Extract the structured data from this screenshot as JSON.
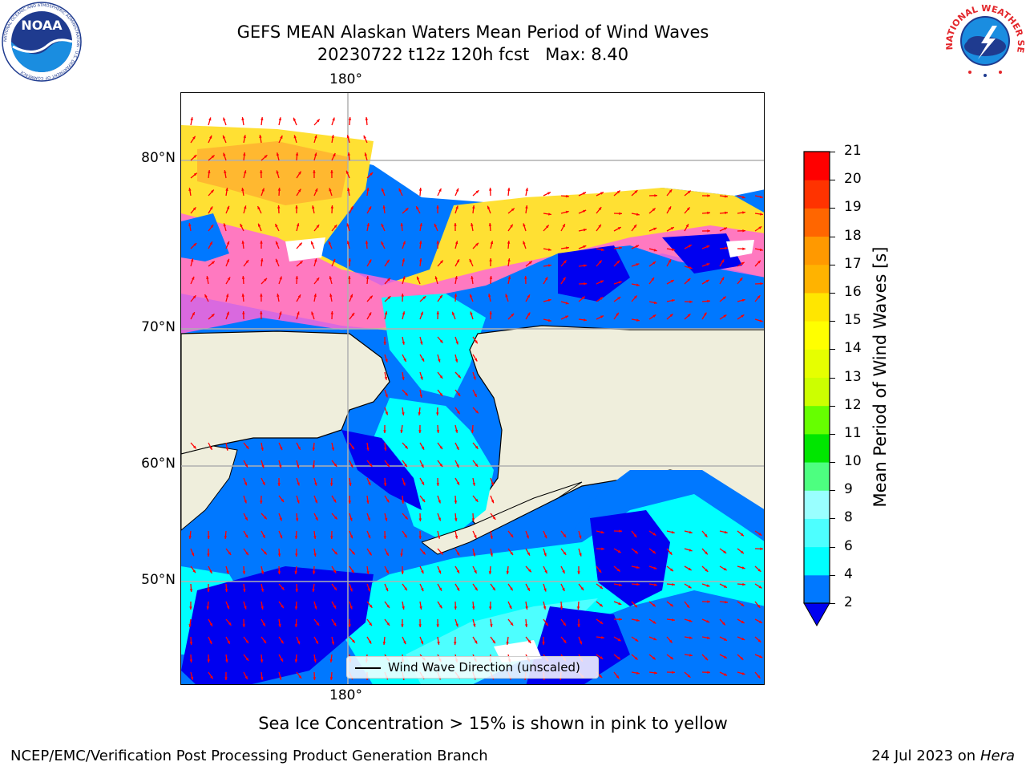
{
  "title": {
    "line1": "GEFS MEAN Alaskan Waters Mean Period of Wind Waves",
    "line2": "20230722 t12z 120h fcst   Max: 8.40"
  },
  "logos": {
    "left": {
      "name": "noaa-logo",
      "text": "NOAA",
      "ring_text": "NATIONAL OCEANIC AND ATMOSPHERIC ADMINISTRATION · U.S. DEPARTMENT OF COMMERCE"
    },
    "right": {
      "name": "nws-logo",
      "ring_text": "NATIONAL WEATHER SERVICE"
    }
  },
  "map": {
    "lon_labels": {
      "top": "180°",
      "bottom": "180°"
    },
    "lat_labels": [
      "80°N",
      "70°N",
      "60°N",
      "50°N"
    ],
    "legend_text": "Wind Wave Direction (unscaled)",
    "colors": {
      "land": "#efeedc",
      "ocean_deep": "#0000f0",
      "ocean_2_4": "#0078ff",
      "ocean_4_6": "#00ffff",
      "ocean_6_8": "#4dffff",
      "ice_pink": "#ff66d9",
      "ice_yellow": "#ffe033",
      "ice_orange": "#ffb030",
      "arrow": "#ff0000"
    }
  },
  "colorbar": {
    "title": "Mean Period of Wind Waves [s]",
    "levels": [
      "2",
      "4",
      "6",
      "8",
      "9",
      "10",
      "11",
      "12",
      "13",
      "14",
      "15",
      "16",
      "17",
      "18",
      "19",
      "20",
      "21"
    ],
    "colors": [
      "#0078ff",
      "#00ffff",
      "#4dffff",
      "#99ffff",
      "#4dff80",
      "#00e600",
      "#66ff00",
      "#ccff00",
      "#e6ff00",
      "#ffff00",
      "#ffe600",
      "#ffb300",
      "#ff9900",
      "#ff6600",
      "#ff3300",
      "#ff0000"
    ],
    "extend_color": "#0000f0"
  },
  "caption": "Sea Ice Concentration > 15% is shown in pink to yellow",
  "footer": {
    "left": "NCEP/EMC/Verification Post Processing Product Generation Branch",
    "right_date": "24 Jul 2023 on ",
    "right_machine": "Hera"
  }
}
